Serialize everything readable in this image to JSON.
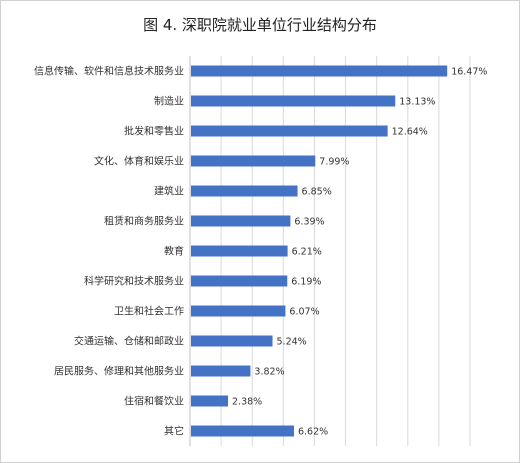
{
  "title": "图 4. 深职院就业单位行业结构分布",
  "chart_data": {
    "type": "bar",
    "orientation": "horizontal",
    "title": "图 4. 深职院就业单位行业结构分布",
    "categories": [
      "信息传输、软件和信息技术服务业",
      "制造业",
      "批发和零售业",
      "文化、体育和娱乐业",
      "建筑业",
      "租赁和商务服务业",
      "教育",
      "科学研究和技术服务业",
      "卫生和社会工作",
      "交通运输、仓储和邮政业",
      "居民服务、修理和其他服务业",
      "住宿和餐饮业",
      "其它"
    ],
    "values": [
      16.47,
      13.13,
      12.64,
      7.99,
      6.85,
      6.39,
      6.21,
      6.19,
      6.07,
      5.24,
      3.82,
      2.38,
      6.62
    ],
    "data_labels": [
      "16.47%",
      "13.13%",
      "12.64%",
      "7.99%",
      "6.85%",
      "6.39%",
      "6.21%",
      "6.19%",
      "6.07%",
      "5.24%",
      "3.82%",
      "2.38%",
      "6.62%"
    ],
    "xlim": [
      0,
      18
    ],
    "grid": true,
    "bar_color": "#4472c4",
    "gridline_color": "#d9d9d9"
  }
}
